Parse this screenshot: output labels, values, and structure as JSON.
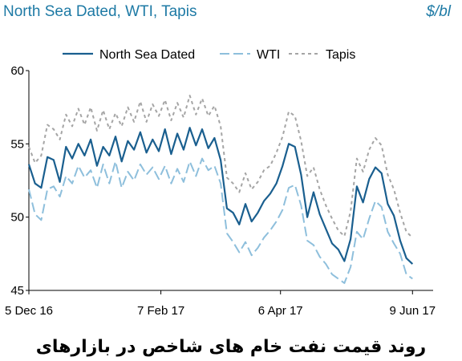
{
  "chart_data": {
    "type": "line",
    "title": "North Sea Dated, WTI, Tapis",
    "unit": "$/bl",
    "caption": "روند قیمت نفت خام های شاخص در بازارهای",
    "x_tick_labels": [
      "5 Dec 16",
      "7 Feb 17",
      "6 Apr 17",
      "9 Jun 17"
    ],
    "x_tick_positions": [
      0,
      64,
      122,
      186
    ],
    "x_range": [
      0,
      196
    ],
    "y_ticks": [
      45,
      50,
      55,
      60
    ],
    "ylim": [
      45,
      60
    ],
    "grid": false,
    "legend_placement": "top-center",
    "series": [
      {
        "name": "North Sea Dated",
        "color": "#1a5f8f",
        "dash": "solid",
        "points": [
          [
            0,
            53.6
          ],
          [
            3,
            52.3
          ],
          [
            6,
            52.0
          ],
          [
            9,
            54.1
          ],
          [
            12,
            53.9
          ],
          [
            15,
            52.4
          ],
          [
            18,
            54.8
          ],
          [
            21,
            54.0
          ],
          [
            24,
            55.0
          ],
          [
            27,
            54.2
          ],
          [
            30,
            55.3
          ],
          [
            33,
            53.5
          ],
          [
            36,
            54.8
          ],
          [
            39,
            54.2
          ],
          [
            42,
            55.5
          ],
          [
            45,
            53.8
          ],
          [
            48,
            55.2
          ],
          [
            51,
            54.6
          ],
          [
            54,
            55.8
          ],
          [
            57,
            54.4
          ],
          [
            60,
            55.3
          ],
          [
            63,
            54.5
          ],
          [
            66,
            56.0
          ],
          [
            69,
            54.3
          ],
          [
            72,
            55.7
          ],
          [
            75,
            54.6
          ],
          [
            78,
            56.1
          ],
          [
            81,
            54.9
          ],
          [
            84,
            56.0
          ],
          [
            87,
            54.7
          ],
          [
            90,
            55.4
          ],
          [
            93,
            53.9
          ],
          [
            96,
            50.6
          ],
          [
            99,
            50.3
          ],
          [
            102,
            49.5
          ],
          [
            105,
            50.9
          ],
          [
            108,
            49.7
          ],
          [
            111,
            50.3
          ],
          [
            114,
            51.1
          ],
          [
            117,
            51.6
          ],
          [
            120,
            52.3
          ],
          [
            123,
            53.5
          ],
          [
            126,
            55.0
          ],
          [
            129,
            54.8
          ],
          [
            132,
            52.9
          ],
          [
            135,
            50.0
          ],
          [
            138,
            51.7
          ],
          [
            141,
            50.2
          ],
          [
            144,
            49.2
          ],
          [
            147,
            48.2
          ],
          [
            150,
            47.8
          ],
          [
            153,
            47.0
          ],
          [
            156,
            48.5
          ],
          [
            159,
            52.1
          ],
          [
            162,
            51.0
          ],
          [
            165,
            52.6
          ],
          [
            168,
            53.4
          ],
          [
            171,
            53.0
          ],
          [
            174,
            50.9
          ],
          [
            177,
            50.1
          ],
          [
            180,
            48.4
          ],
          [
            183,
            47.2
          ],
          [
            186,
            46.8
          ]
        ]
      },
      {
        "name": "WTI",
        "color": "#8ebfdc",
        "dash": "long-dash",
        "points": [
          [
            0,
            51.9
          ],
          [
            3,
            50.2
          ],
          [
            6,
            49.8
          ],
          [
            9,
            51.9
          ],
          [
            12,
            52.1
          ],
          [
            15,
            51.4
          ],
          [
            18,
            52.8
          ],
          [
            21,
            52.3
          ],
          [
            24,
            53.5
          ],
          [
            27,
            52.7
          ],
          [
            30,
            53.2
          ],
          [
            33,
            52.0
          ],
          [
            36,
            53.6
          ],
          [
            39,
            52.3
          ],
          [
            42,
            53.8
          ],
          [
            45,
            52.0
          ],
          [
            48,
            53.1
          ],
          [
            51,
            52.5
          ],
          [
            54,
            53.6
          ],
          [
            57,
            52.9
          ],
          [
            60,
            53.4
          ],
          [
            63,
            52.6
          ],
          [
            66,
            53.5
          ],
          [
            69,
            52.3
          ],
          [
            72,
            53.3
          ],
          [
            75,
            52.4
          ],
          [
            78,
            53.8
          ],
          [
            81,
            52.8
          ],
          [
            84,
            54.0
          ],
          [
            87,
            53.2
          ],
          [
            90,
            53.5
          ],
          [
            93,
            52.3
          ],
          [
            96,
            48.9
          ],
          [
            99,
            48.3
          ],
          [
            102,
            47.6
          ],
          [
            105,
            48.3
          ],
          [
            108,
            47.4
          ],
          [
            111,
            47.9
          ],
          [
            114,
            48.6
          ],
          [
            117,
            49.1
          ],
          [
            120,
            49.7
          ],
          [
            123,
            50.5
          ],
          [
            126,
            52.0
          ],
          [
            129,
            52.2
          ],
          [
            132,
            50.8
          ],
          [
            135,
            48.4
          ],
          [
            138,
            48.1
          ],
          [
            141,
            47.3
          ],
          [
            144,
            46.8
          ],
          [
            147,
            46.1
          ],
          [
            150,
            45.8
          ],
          [
            153,
            45.5
          ],
          [
            156,
            46.6
          ],
          [
            159,
            49.0
          ],
          [
            162,
            48.5
          ],
          [
            165,
            49.9
          ],
          [
            168,
            51.1
          ],
          [
            171,
            50.7
          ],
          [
            174,
            49.0
          ],
          [
            177,
            48.2
          ],
          [
            180,
            47.5
          ],
          [
            183,
            46.1
          ],
          [
            186,
            45.8
          ]
        ]
      },
      {
        "name": "Tapis",
        "color": "#a5a5a5",
        "dash": "short-dash",
        "points": [
          [
            0,
            54.8
          ],
          [
            3,
            53.7
          ],
          [
            6,
            54.2
          ],
          [
            9,
            56.3
          ],
          [
            12,
            56.0
          ],
          [
            15,
            55.3
          ],
          [
            18,
            57.0
          ],
          [
            21,
            56.2
          ],
          [
            24,
            57.4
          ],
          [
            27,
            56.3
          ],
          [
            30,
            57.5
          ],
          [
            33,
            55.9
          ],
          [
            36,
            57.3
          ],
          [
            39,
            56.0
          ],
          [
            42,
            57.1
          ],
          [
            45,
            56.2
          ],
          [
            48,
            57.5
          ],
          [
            51,
            56.5
          ],
          [
            54,
            57.9
          ],
          [
            57,
            56.5
          ],
          [
            60,
            57.7
          ],
          [
            63,
            56.9
          ],
          [
            66,
            58.0
          ],
          [
            69,
            56.6
          ],
          [
            72,
            57.8
          ],
          [
            75,
            56.8
          ],
          [
            78,
            58.3
          ],
          [
            81,
            57.0
          ],
          [
            84,
            58.1
          ],
          [
            87,
            56.9
          ],
          [
            90,
            57.6
          ],
          [
            93,
            56.2
          ],
          [
            96,
            52.7
          ],
          [
            99,
            52.3
          ],
          [
            102,
            51.7
          ],
          [
            105,
            53.0
          ],
          [
            108,
            51.9
          ],
          [
            111,
            52.4
          ],
          [
            114,
            53.2
          ],
          [
            117,
            53.5
          ],
          [
            120,
            54.4
          ],
          [
            123,
            55.5
          ],
          [
            126,
            57.2
          ],
          [
            129,
            56.9
          ],
          [
            132,
            55.2
          ],
          [
            135,
            52.8
          ],
          [
            138,
            53.4
          ],
          [
            141,
            51.9
          ],
          [
            144,
            50.8
          ],
          [
            147,
            49.9
          ],
          [
            150,
            49.1
          ],
          [
            153,
            48.7
          ],
          [
            156,
            50.4
          ],
          [
            159,
            54.0
          ],
          [
            162,
            53.1
          ],
          [
            165,
            54.6
          ],
          [
            168,
            55.4
          ],
          [
            171,
            54.9
          ],
          [
            174,
            52.9
          ],
          [
            177,
            51.9
          ],
          [
            180,
            50.3
          ],
          [
            183,
            49.0
          ],
          [
            186,
            48.6
          ]
        ]
      }
    ]
  }
}
